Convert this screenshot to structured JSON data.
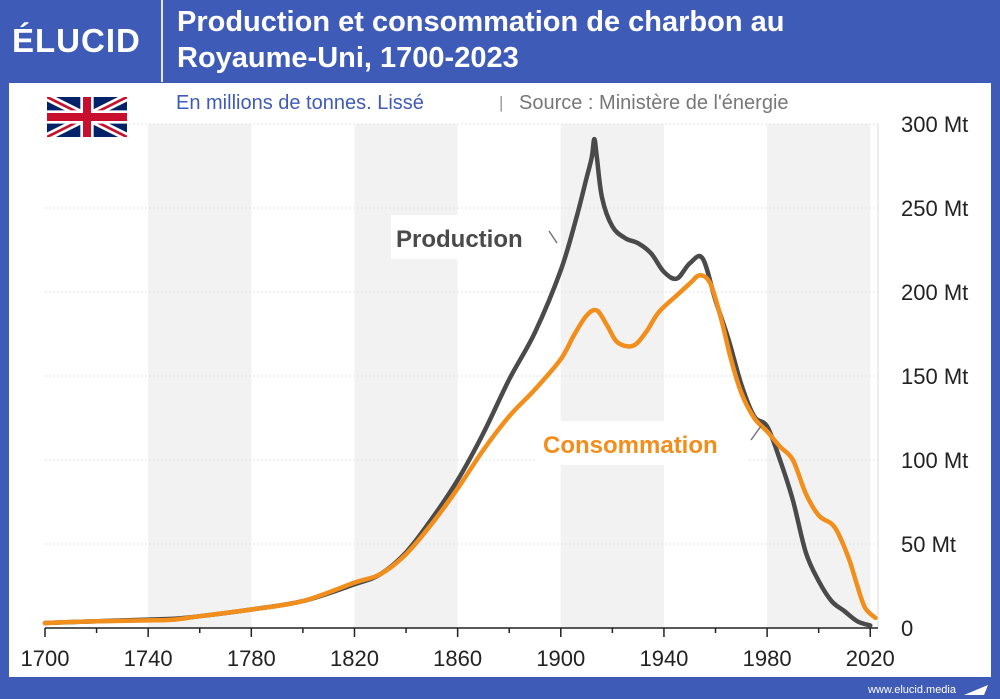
{
  "header": {
    "logo": "ÉLUCID",
    "title_line1": "Production et consommation de charbon au",
    "title_line2": "Royaume-Uni, 1700-2023"
  },
  "footer": {
    "url": "www.elucid.media"
  },
  "colors": {
    "brand": "#3f5bb8",
    "production": "#4a4a4a",
    "consommation": "#f28e1c",
    "band": "#f2f2f2",
    "grid": "#e3e3e3",
    "subtitle": "#3f5bb8",
    "source": "#777777"
  },
  "chart_data": {
    "type": "line",
    "subtitle": "En millions de tonnes. Lissé",
    "source": "Source : Ministère de l'énergie",
    "xlim": [
      1700,
      2023
    ],
    "ylim": [
      0,
      300
    ],
    "x_ticks": [
      1700,
      1740,
      1780,
      1820,
      1860,
      1900,
      1940,
      1980,
      2020
    ],
    "y_ticks": [
      0,
      50,
      100,
      150,
      200,
      250,
      300
    ],
    "y_tick_labels": [
      "0",
      "50 Mt",
      "100 Mt",
      "150 Mt",
      "200 Mt",
      "250 Mt",
      "300 Mt"
    ],
    "series": [
      {
        "name": "Production",
        "color": "#4a4a4a",
        "points": [
          [
            1700,
            3
          ],
          [
            1720,
            4
          ],
          [
            1740,
            5
          ],
          [
            1750,
            5.5
          ],
          [
            1760,
            7
          ],
          [
            1780,
            11
          ],
          [
            1800,
            16
          ],
          [
            1820,
            26
          ],
          [
            1830,
            32
          ],
          [
            1840,
            45
          ],
          [
            1850,
            65
          ],
          [
            1860,
            88
          ],
          [
            1870,
            116
          ],
          [
            1880,
            148
          ],
          [
            1890,
            176
          ],
          [
            1900,
            213
          ],
          [
            1906,
            244
          ],
          [
            1910,
            268
          ],
          [
            1912,
            280
          ],
          [
            1913,
            291
          ],
          [
            1914,
            280
          ],
          [
            1916,
            256
          ],
          [
            1920,
            239
          ],
          [
            1925,
            232
          ],
          [
            1930,
            229
          ],
          [
            1935,
            223
          ],
          [
            1940,
            212
          ],
          [
            1945,
            208
          ],
          [
            1950,
            217
          ],
          [
            1955,
            220
          ],
          [
            1960,
            195
          ],
          [
            1965,
            172
          ],
          [
            1970,
            145
          ],
          [
            1975,
            126
          ],
          [
            1980,
            120
          ],
          [
            1985,
            100
          ],
          [
            1990,
            76
          ],
          [
            1995,
            45
          ],
          [
            2000,
            28
          ],
          [
            2005,
            16
          ],
          [
            2010,
            10
          ],
          [
            2015,
            4
          ],
          [
            2020,
            1.5
          ]
        ]
      },
      {
        "name": "Consommation",
        "color": "#f28e1c",
        "points": [
          [
            1700,
            3
          ],
          [
            1720,
            4
          ],
          [
            1740,
            4.5
          ],
          [
            1750,
            5
          ],
          [
            1760,
            7
          ],
          [
            1780,
            11
          ],
          [
            1800,
            16
          ],
          [
            1820,
            27
          ],
          [
            1830,
            32
          ],
          [
            1840,
            44
          ],
          [
            1850,
            62
          ],
          [
            1860,
            83
          ],
          [
            1870,
            106
          ],
          [
            1880,
            126
          ],
          [
            1890,
            142
          ],
          [
            1900,
            160
          ],
          [
            1905,
            174
          ],
          [
            1910,
            186
          ],
          [
            1914,
            189
          ],
          [
            1918,
            180
          ],
          [
            1922,
            170
          ],
          [
            1928,
            168
          ],
          [
            1933,
            176
          ],
          [
            1938,
            188
          ],
          [
            1945,
            198
          ],
          [
            1950,
            205
          ],
          [
            1954,
            210
          ],
          [
            1958,
            205
          ],
          [
            1962,
            185
          ],
          [
            1966,
            160
          ],
          [
            1970,
            140
          ],
          [
            1975,
            125
          ],
          [
            1980,
            117
          ],
          [
            1985,
            108
          ],
          [
            1990,
            100
          ],
          [
            1995,
            80
          ],
          [
            2000,
            67
          ],
          [
            2005,
            62
          ],
          [
            2008,
            55
          ],
          [
            2012,
            40
          ],
          [
            2015,
            25
          ],
          [
            2018,
            12
          ],
          [
            2022,
            6
          ]
        ]
      }
    ],
    "annotations": [
      {
        "text": "Production",
        "series": "Production"
      },
      {
        "text": "Consommation",
        "series": "Consommation"
      }
    ]
  }
}
